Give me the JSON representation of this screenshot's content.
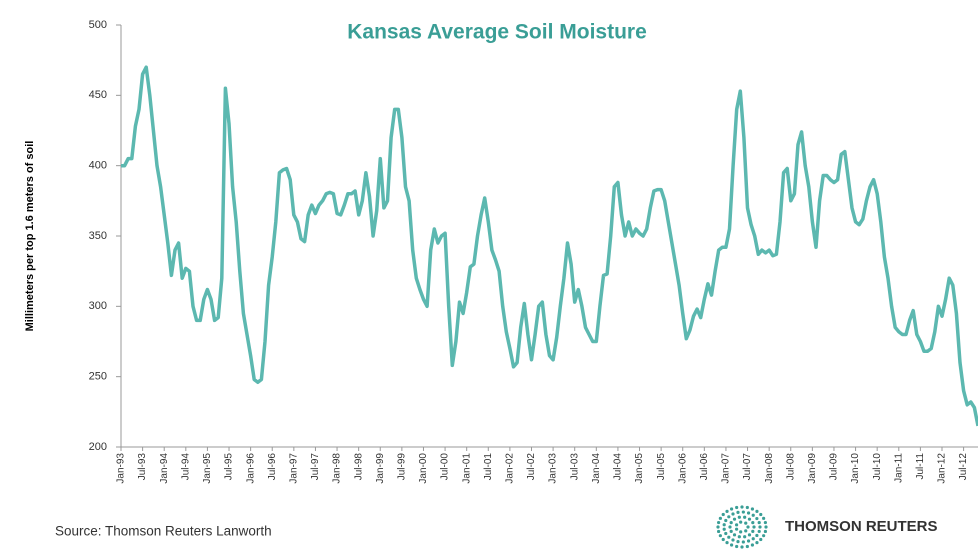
{
  "chart_data": {
    "type": "line",
    "title": "Kansas Average Soil Moisture",
    "y_label": "Millimeters per top 1.6 meters of soil",
    "source": "Source: Thomson Reuters Lanworth",
    "logo": "THOMSON REUTERS",
    "categories": [
      "Jan-93",
      null,
      null,
      null,
      null,
      null,
      "Jul-93",
      null,
      null,
      null,
      null,
      null,
      "Jan-94",
      null,
      null,
      null,
      null,
      null,
      "Jul-94",
      null,
      null,
      null,
      null,
      null,
      "Jan-95",
      null,
      null,
      null,
      null,
      null,
      "Jul-95",
      null,
      null,
      null,
      null,
      null,
      "Jan-96",
      null,
      null,
      null,
      null,
      null,
      "Jul-96",
      null,
      null,
      null,
      null,
      null,
      "Jan-97",
      null,
      null,
      null,
      null,
      null,
      "Jul-97",
      null,
      null,
      null,
      null,
      null,
      "Jan-98",
      null,
      null,
      null,
      null,
      null,
      "Jul-98",
      null,
      null,
      null,
      null,
      null,
      "Jan-99",
      null,
      null,
      null,
      null,
      null,
      "Jul-99",
      null,
      null,
      null,
      null,
      null,
      "Jan-00",
      null,
      null,
      null,
      null,
      null,
      "Jul-00",
      null,
      null,
      null,
      null,
      null,
      "Jan-01",
      null,
      null,
      null,
      null,
      null,
      "Jul-01",
      null,
      null,
      null,
      null,
      null,
      "Jan-02",
      null,
      null,
      null,
      null,
      null,
      "Jul-02",
      null,
      null,
      null,
      null,
      null,
      "Jan-03",
      null,
      null,
      null,
      null,
      null,
      "Jul-03",
      null,
      null,
      null,
      null,
      null,
      "Jan-04",
      null,
      null,
      null,
      null,
      null,
      "Jul-04",
      null,
      null,
      null,
      null,
      null,
      "Jan-05",
      null,
      null,
      null,
      null,
      null,
      "Jul-05",
      null,
      null,
      null,
      null,
      null,
      "Jan-06",
      null,
      null,
      null,
      null,
      null,
      "Jul-06",
      null,
      null,
      null,
      null,
      null,
      "Jan-07",
      null,
      null,
      null,
      null,
      null,
      "Jul-07",
      null,
      null,
      null,
      null,
      null,
      "Jan-08",
      null,
      null,
      null,
      null,
      null,
      "Jul-08",
      null,
      null,
      null,
      null,
      null,
      "Jan-09",
      null,
      null,
      null,
      null,
      null,
      "Jul-09",
      null,
      null,
      null,
      null,
      null,
      "Jan-10",
      null,
      null,
      null,
      null,
      null,
      "Jul-10",
      null,
      null,
      null,
      null,
      null,
      "Jan-11",
      null,
      null,
      null,
      null,
      null,
      "Jul-11",
      null,
      null,
      null,
      null,
      null,
      "Jan-12",
      null,
      null,
      null,
      null,
      null,
      "Jul-12",
      null,
      null,
      null,
      null
    ],
    "series": [
      {
        "name": "Kansas Average Soil Moisture",
        "color": "#5cb8b0",
        "values": [
          400,
          400,
          405,
          405,
          428,
          440,
          465,
          470,
          450,
          425,
          400,
          385,
          365,
          345,
          322,
          340,
          345,
          320,
          327,
          325,
          300,
          290,
          290,
          305,
          312,
          305,
          290,
          292,
          320,
          455,
          430,
          385,
          360,
          325,
          295,
          280,
          265,
          248,
          246,
          248,
          275,
          315,
          335,
          360,
          395,
          397,
          398,
          390,
          365,
          360,
          348,
          346,
          365,
          372,
          366,
          372,
          375,
          380,
          381,
          380,
          366,
          365,
          372,
          380,
          380,
          382,
          365,
          375,
          395,
          378,
          350,
          368,
          405,
          370,
          375,
          420,
          440,
          440,
          420,
          385,
          375,
          340,
          320,
          312,
          305,
          300,
          340,
          355,
          345,
          350,
          352,
          300,
          258,
          275,
          303,
          295,
          310,
          328,
          330,
          350,
          365,
          377,
          360,
          340,
          333,
          325,
          300,
          282,
          270,
          257,
          260,
          285,
          302,
          280,
          262,
          280,
          300,
          303,
          280,
          265,
          262,
          278,
          300,
          320,
          345,
          330,
          303,
          312,
          300,
          285,
          280,
          275,
          275,
          300,
          322,
          323,
          350,
          385,
          388,
          365,
          350,
          360,
          350,
          355,
          352,
          350,
          355,
          370,
          382,
          383,
          383,
          375,
          360,
          345,
          330,
          315,
          295,
          277,
          283,
          293,
          298,
          292,
          305,
          316,
          308,
          325,
          340,
          342,
          342,
          355,
          400,
          440,
          453,
          420,
          370,
          358,
          350,
          337,
          340,
          338,
          340,
          336,
          337,
          360,
          395,
          398,
          375,
          380,
          415,
          424,
          400,
          385,
          360,
          342,
          375,
          393,
          393,
          390,
          388,
          390,
          408,
          410,
          390,
          370,
          360,
          358,
          362,
          375,
          385,
          390,
          380,
          360,
          335,
          320,
          300,
          285,
          282,
          280,
          280,
          290,
          297,
          280,
          275,
          268,
          268,
          270,
          282,
          300,
          293,
          305,
          320,
          315,
          295,
          260,
          240,
          230,
          232,
          228,
          215
        ]
      }
    ],
    "ylim": [
      200,
      500
    ],
    "yticks": [
      200,
      250,
      300,
      350,
      400,
      450,
      500
    ]
  }
}
